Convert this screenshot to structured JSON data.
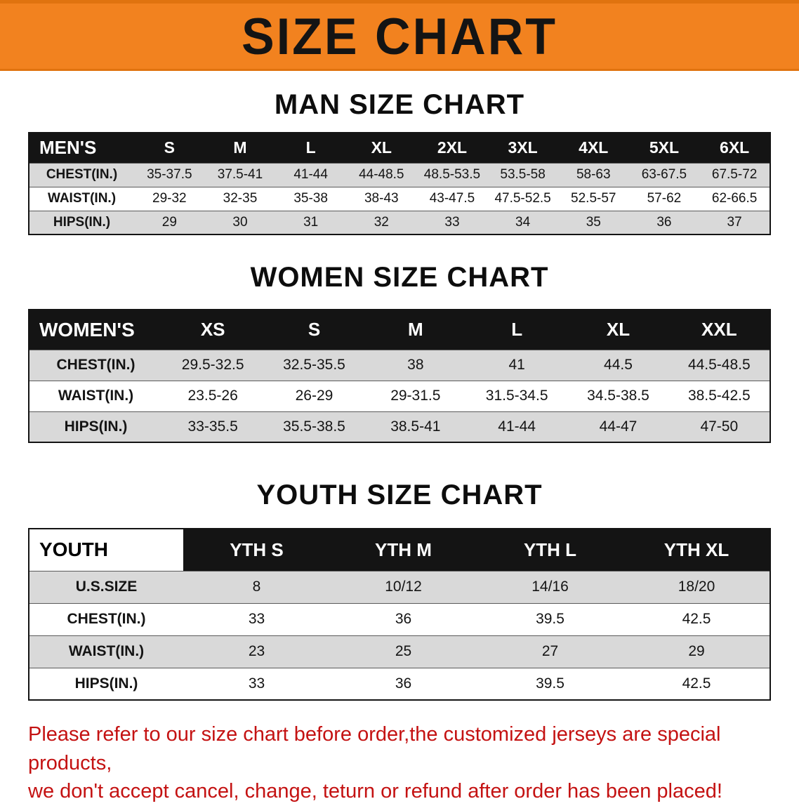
{
  "banner": {
    "title": "SIZE CHART",
    "bg_color": "#F2821F",
    "text_color": "#141414"
  },
  "men": {
    "heading": "MAN SIZE CHART",
    "header_label": "MEN'S",
    "columns": [
      "S",
      "M",
      "L",
      "XL",
      "2XL",
      "3XL",
      "4XL",
      "5XL",
      "6XL"
    ],
    "rows": [
      {
        "label": "CHEST(IN.)",
        "values": [
          "35-37.5",
          "37.5-41",
          "41-44",
          "44-48.5",
          "48.5-53.5",
          "53.5-58",
          "58-63",
          "63-67.5",
          "67.5-72"
        ]
      },
      {
        "label": "WAIST(IN.)",
        "values": [
          "29-32",
          "32-35",
          "35-38",
          "38-43",
          "43-47.5",
          "47.5-52.5",
          "52.5-57",
          "57-62",
          "62-66.5"
        ]
      },
      {
        "label": "HIPS(IN.)",
        "values": [
          "29",
          "30",
          "31",
          "32",
          "33",
          "34",
          "35",
          "36",
          "37"
        ]
      }
    ]
  },
  "women": {
    "heading": "WOMEN SIZE CHART",
    "header_label": "WOMEN'S",
    "columns": [
      "XS",
      "S",
      "M",
      "L",
      "XL",
      "XXL"
    ],
    "rows": [
      {
        "label": "CHEST(IN.)",
        "values": [
          "29.5-32.5",
          "32.5-35.5",
          "38",
          "41",
          "44.5",
          "44.5-48.5"
        ]
      },
      {
        "label": "WAIST(IN.)",
        "values": [
          "23.5-26",
          "26-29",
          "29-31.5",
          "31.5-34.5",
          "34.5-38.5",
          "38.5-42.5"
        ]
      },
      {
        "label": "HIPS(IN.)",
        "values": [
          "33-35.5",
          "35.5-38.5",
          "38.5-41",
          "41-44",
          "44-47",
          "47-50"
        ]
      }
    ]
  },
  "youth": {
    "heading": "YOUTH SIZE CHART",
    "header_label": "YOUTH",
    "columns": [
      "YTH S",
      "YTH M",
      "YTH L",
      "YTH XL"
    ],
    "rows": [
      {
        "label": "U.S.SIZE",
        "values": [
          "8",
          "10/12",
          "14/16",
          "18/20"
        ]
      },
      {
        "label": "CHEST(IN.)",
        "values": [
          "33",
          "36",
          "39.5",
          "42.5"
        ]
      },
      {
        "label": "WAIST(IN.)",
        "values": [
          "23",
          "25",
          "27",
          "29"
        ]
      },
      {
        "label": "HIPS(IN.)",
        "values": [
          "33",
          "36",
          "39.5",
          "42.5"
        ]
      }
    ]
  },
  "disclaimer": {
    "line1": "Please refer to our size chart before order,the customized jerseys are special products,",
    "line2": "we don't accept cancel, change, teturn or refund after order has been placed!",
    "text_color": "#C41212"
  }
}
